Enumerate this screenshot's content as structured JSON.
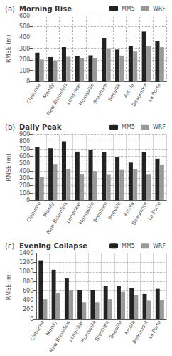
{
  "chart_data": [
    {
      "type": "bar",
      "title": "Morning Rise",
      "annotation": "(a)",
      "ylabel": "RMSE (m)",
      "categories": [
        "Cleburne",
        "Moody",
        "New Braunfels",
        "Longview",
        "Huntsville",
        "Brenham",
        "Beeville",
        "Arcola",
        "Beaumont",
        "La Porte"
      ],
      "series": [
        {
          "name": "MM5",
          "color": "#222222",
          "values": [
            265,
            225,
            315,
            232,
            240,
            393,
            293,
            325,
            455,
            368
          ]
        },
        {
          "name": "WRF",
          "color": "#999999",
          "values": [
            203,
            192,
            228,
            215,
            218,
            297,
            238,
            275,
            323,
            315
          ]
        }
      ],
      "ylim": [
        0,
        600
      ],
      "yticks": [
        0,
        100,
        200,
        300,
        400,
        500,
        600
      ],
      "grid": true,
      "legend": "upper right"
    },
    {
      "type": "bar",
      "title": "Daily Peak",
      "annotation": "(b)",
      "ylabel": "RMSE (m)",
      "categories": [
        "Cleburne",
        "Moody",
        "New Braunfels",
        "Longview",
        "Huntsville",
        "Brenham",
        "Beeville",
        "Arcola",
        "Beaumont",
        "La Porte"
      ],
      "series": [
        {
          "name": "MM5",
          "color": "#222222",
          "values": [
            730,
            710,
            805,
            665,
            690,
            658,
            588,
            515,
            655,
            568
          ]
        },
        {
          "name": "WRF",
          "color": "#999999",
          "values": [
            323,
            487,
            430,
            353,
            398,
            348,
            415,
            422,
            350,
            480
          ]
        }
      ],
      "ylim": [
        0,
        900
      ],
      "yticks": [
        0,
        100,
        200,
        300,
        400,
        500,
        600,
        700,
        800,
        900
      ],
      "grid": true,
      "legend": "upper right"
    },
    {
      "type": "bar",
      "title": "Evening Collapse",
      "annotation": "(c)",
      "ylabel": "RMSE (m)",
      "categories": [
        "Cleburne",
        "Moody",
        "New Braunfels",
        "Longview",
        "Huntsville",
        "Brenham",
        "Beeville",
        "Arcola",
        "Beaumont",
        "La Porte"
      ],
      "series": [
        {
          "name": "MM5",
          "color": "#222222",
          "values": [
            1245,
            1045,
            860,
            605,
            605,
            710,
            705,
            655,
            530,
            640
          ]
        },
        {
          "name": "WRF",
          "color": "#999999",
          "values": [
            420,
            545,
            600,
            358,
            358,
            420,
            580,
            510,
            385,
            405
          ]
        }
      ],
      "ylim": [
        0,
        1400
      ],
      "yticks": [
        0,
        200,
        400,
        600,
        800,
        1000,
        1200,
        1400
      ],
      "grid": true,
      "legend": "upper right"
    }
  ]
}
